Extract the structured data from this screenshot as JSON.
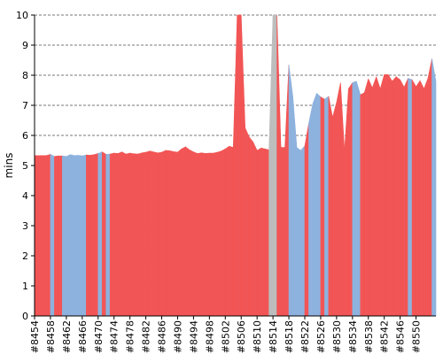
{
  "chart_data": {
    "type": "area",
    "title": "",
    "xlabel": "",
    "ylabel": "mins",
    "ylim": [
      0,
      10
    ],
    "yticks": [
      "0",
      "1",
      "2",
      "3",
      "4",
      "5",
      "6",
      "7",
      "8",
      "9",
      "10"
    ],
    "x_tick_labels": [
      "#8454",
      "#8458",
      "#8462",
      "#8466",
      "#8470",
      "#8474",
      "#8478",
      "#8482",
      "#8486",
      "#8490",
      "#8494",
      "#8498",
      "#8502",
      "#8506",
      "#8510",
      "#8514",
      "#8518",
      "#8522",
      "#8526",
      "#8530",
      "#8534",
      "#8538",
      "#8542",
      "#8546",
      "#8550"
    ],
    "grid": true,
    "legend": "none",
    "colors": {
      "failed": "#f25555",
      "passed": "#8eb2de",
      "missing": "#bdbdbd",
      "grid": "#777777",
      "axis": "#000000"
    },
    "builds_start": 8454,
    "status": [
      "failed",
      "failed",
      "failed",
      "failed",
      "passed",
      "failed",
      "failed",
      "passed",
      "passed",
      "passed",
      "passed",
      "passed",
      "passed",
      "failed",
      "failed",
      "failed",
      "passed",
      "failed",
      "passed",
      "failed",
      "failed",
      "failed",
      "failed",
      "failed",
      "failed",
      "failed",
      "failed",
      "failed",
      "failed",
      "failed",
      "failed",
      "failed",
      "failed",
      "failed",
      "failed",
      "failed",
      "failed",
      "failed",
      "failed",
      "failed",
      "failed",
      "failed",
      "failed",
      "failed",
      "failed",
      "failed",
      "failed",
      "failed",
      "failed",
      "failed",
      "failed",
      "failed",
      "failed",
      "failed",
      "failed",
      "failed",
      "failed",
      "failed",
      "failed",
      "missing",
      "missing",
      "failed",
      "failed",
      "failed",
      "passed",
      "passed",
      "passed",
      "passed",
      "failed",
      "passed",
      "passed",
      "passed",
      "failed",
      "passed",
      "failed",
      "failed",
      "failed",
      "failed",
      "failed",
      "failed",
      "passed",
      "passed",
      "failed",
      "failed",
      "failed",
      "failed",
      "failed",
      "failed",
      "failed",
      "failed",
      "failed",
      "failed",
      "failed",
      "failed",
      "passed",
      "failed",
      "failed",
      "failed",
      "failed",
      "failed",
      "passed"
    ],
    "values": [
      5.33,
      5.33,
      5.33,
      5.33,
      5.37,
      5.3,
      5.32,
      5.32,
      5.3,
      5.36,
      5.33,
      5.34,
      5.32,
      5.35,
      5.34,
      5.36,
      5.4,
      5.45,
      5.37,
      5.38,
      5.41,
      5.4,
      5.45,
      5.38,
      5.41,
      5.39,
      5.38,
      5.42,
      5.44,
      5.48,
      5.45,
      5.42,
      5.44,
      5.5,
      5.49,
      5.46,
      5.44,
      5.55,
      5.62,
      5.52,
      5.45,
      5.4,
      5.42,
      5.4,
      5.41,
      5.41,
      5.44,
      5.48,
      5.55,
      5.64,
      5.6,
      10.0,
      10.0,
      6.25,
      5.95,
      5.78,
      5.5,
      5.58,
      5.55,
      5.52,
      10.0,
      10.0,
      5.6,
      5.6,
      8.35,
      7.3,
      5.6,
      5.5,
      5.65,
      6.4,
      7.05,
      7.4,
      7.28,
      7.2,
      7.3,
      6.6,
      7.1,
      7.75,
      5.5,
      7.55,
      7.75,
      7.8,
      7.35,
      7.42,
      7.88,
      7.58,
      7.95,
      7.55,
      8.02,
      8.02,
      7.8,
      7.95,
      7.85,
      7.6,
      7.9,
      7.85,
      7.62,
      7.82,
      7.55,
      7.9,
      8.55,
      7.8
    ]
  }
}
